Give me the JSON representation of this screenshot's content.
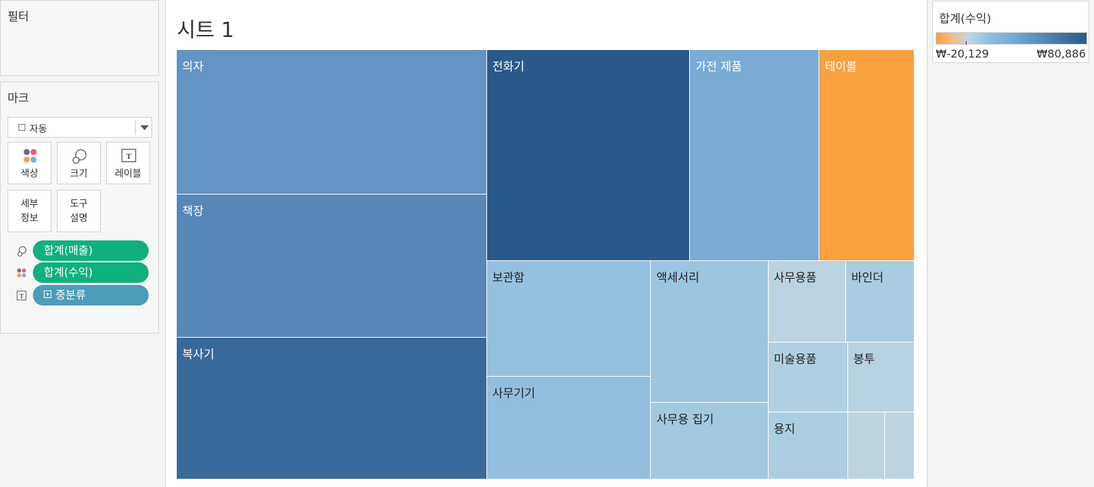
{
  "filters": {
    "title": "필터"
  },
  "marks": {
    "title": "마크",
    "mark_type": "자동",
    "cards": [
      {
        "label": "색상",
        "icon": "color-icon"
      },
      {
        "label": "크기",
        "icon": "size-icon"
      },
      {
        "label": "레이블",
        "icon": "label-icon"
      },
      {
        "label_line1": "세부",
        "label_line2": "정보",
        "icon": "none"
      },
      {
        "label_line1": "도구",
        "label_line2": "설명",
        "icon": "none"
      }
    ],
    "pills": [
      {
        "field": "합계(매출)",
        "channel_icon": "size-icon",
        "color": "#10b07f"
      },
      {
        "field": "합계(수익)",
        "channel_icon": "color-icon",
        "color": "#10b07f"
      },
      {
        "field": "중분류",
        "channel_icon": "label-icon",
        "color": "#4d9db8"
      }
    ]
  },
  "sheet": {
    "title": "시트 1"
  },
  "legend": {
    "title": "합계(수익)",
    "min_label": "₩-20,129",
    "max_label": "₩80,886",
    "min_color": "#f9a03f",
    "max_color": "#295a8a"
  },
  "chart_data": {
    "type": "treemap",
    "title": "시트 1",
    "size_measure": "합계(매출)",
    "color_measure": "합계(수익)",
    "label_field": "중분류",
    "color_range": [
      -20129,
      80886
    ],
    "categories": [
      {
        "name": "의자",
        "sales_share": 0.1348,
        "profit": 39000
      },
      {
        "name": "책장",
        "sales_share": 0.1333,
        "profit": 46000
      },
      {
        "name": "복사기",
        "sales_share": 0.1314,
        "profit": 68000
      },
      {
        "name": "전화기",
        "sales_share": 0.1313,
        "profit": 80886
      },
      {
        "name": "가전 제품",
        "sales_share": 0.0834,
        "profit": 26000
      },
      {
        "name": "테이블",
        "sales_share": 0.061,
        "profit": -20129
      },
      {
        "name": "보관함",
        "sales_share": 0.0592,
        "profit": 12000
      },
      {
        "name": "사무기기",
        "sales_share": 0.0528,
        "profit": 13000
      },
      {
        "name": "액세서리",
        "sales_share": 0.0526,
        "profit": 9000
      },
      {
        "name": "사무용 집기",
        "sales_share": 0.0355,
        "profit": 7000
      },
      {
        "name": "사무용품",
        "sales_share": 0.0198,
        "profit": 500
      },
      {
        "name": "바인더",
        "sales_share": 0.0176,
        "profit": 5000
      },
      {
        "name": "미술용품",
        "sales_share": 0.0171,
        "profit": 3000
      },
      {
        "name": "봉투",
        "sales_share": 0.0154,
        "profit": 1500
      },
      {
        "name": "용지",
        "sales_share": 0.0168,
        "profit": 4000
      },
      {
        "name": "",
        "sales_share": 0.0089,
        "profit": 0
      },
      {
        "name": "",
        "sales_share": 0.0064,
        "profit": 100
      }
    ]
  }
}
